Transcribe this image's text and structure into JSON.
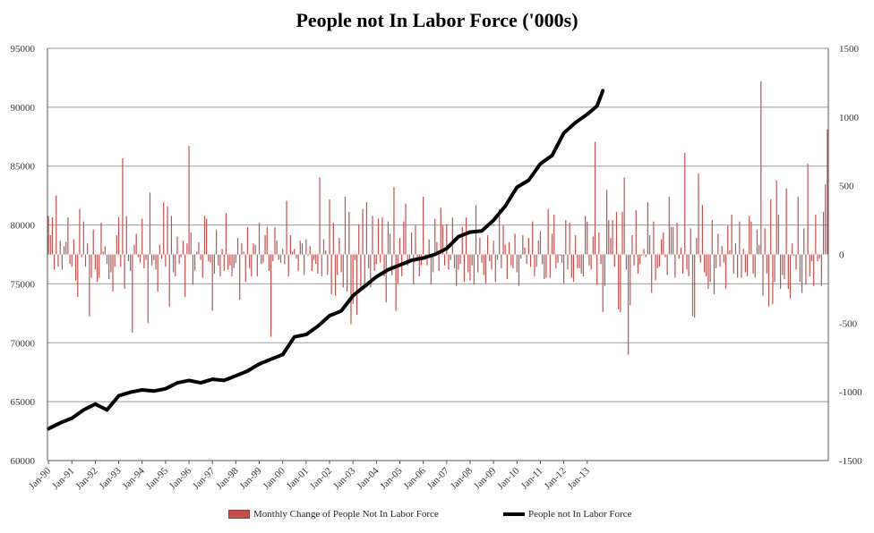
{
  "chart_data": {
    "type": "bar+line",
    "title": "People not In Labor Force ('000s)",
    "left_axis": {
      "ylim": [
        60000,
        95000
      ],
      "ticks": [
        "60000",
        "65000",
        "70000",
        "75000",
        "80000",
        "85000",
        "90000",
        "95000"
      ]
    },
    "right_axis": {
      "ylim": [
        -1500,
        1500
      ],
      "ticks": [
        "-1500",
        "-1000",
        "-500",
        "0",
        "500",
        "1000",
        "1500"
      ]
    },
    "x_start": "Jan-90",
    "x_ticks": [
      "Jan-90",
      "Jan-91",
      "Jan-92",
      "Jan-93",
      "Jan-94",
      "Jan-95",
      "Jan-96",
      "Jan-97",
      "Jan-98",
      "Jan-99",
      "Jan-00",
      "Jan-01",
      "Jan-02",
      "Jan-03",
      "Jan-04",
      "Jan-05",
      "Jan-06",
      "Jan-07",
      "Jan-08",
      "Jan-09",
      "Jan-10",
      "Jan-11",
      "Jan-12",
      "Jan-13"
    ],
    "grid": true,
    "legend_position": "bottom",
    "series": [
      {
        "name": "Monthly Change of People Not In Labor Force",
        "type": "bar",
        "axis": "right",
        "color": "#c0504d",
        "values": [
          280,
          140,
          270,
          -110,
          430,
          -90,
          100,
          -110,
          60,
          90,
          270,
          -70,
          -90,
          110,
          -190,
          -310,
          330,
          -20,
          240,
          -90,
          80,
          -450,
          -170,
          180,
          -110,
          -200,
          -170,
          230,
          20,
          60,
          -70,
          -180,
          -130,
          -270,
          -90,
          140,
          270,
          -90,
          700,
          -250,
          280,
          -50,
          -120,
          -570,
          70,
          150,
          -20,
          -60,
          260,
          -100,
          -40,
          -500,
          450,
          -80,
          -40,
          -110,
          -270,
          70,
          -30,
          380,
          -90,
          350,
          -380,
          280,
          -130,
          -160,
          130,
          -70,
          -20,
          100,
          -310,
          80,
          790,
          160,
          -220,
          -120,
          20,
          90,
          -40,
          -170,
          280,
          260,
          -50,
          -60,
          -410,
          -140,
          180,
          -80,
          -160,
          40,
          -120,
          300,
          -110,
          -80,
          -160,
          -100,
          -60,
          120,
          -330,
          80,
          20,
          -200,
          200,
          -100,
          -160,
          80,
          70,
          -160,
          230,
          -70,
          -60,
          140,
          200,
          -120,
          -600,
          -50,
          200,
          100,
          -40,
          -60,
          40,
          -70,
          390,
          -160,
          140,
          20,
          40,
          -30,
          -120,
          100,
          80,
          -150,
          110,
          -10,
          60,
          -120,
          -40,
          -70,
          -140,
          560,
          -160,
          110,
          30,
          -150,
          400,
          -290,
          230,
          -300,
          -150,
          120,
          -130,
          -240,
          420,
          -270,
          310,
          -510,
          -360,
          -40,
          -440,
          220,
          -270,
          330,
          -220,
          380,
          -100,
          -240,
          280,
          -120,
          -70,
          260,
          -60,
          270,
          -160,
          -350,
          240,
          150,
          -150,
          490,
          -410,
          -210,
          120,
          -160,
          240,
          370,
          -80,
          -60,
          160,
          -220,
          210,
          -30,
          -160,
          -80,
          420,
          -40,
          -80,
          110,
          -220,
          -130,
          260,
          90,
          -120,
          340,
          210,
          -80,
          220,
          -110,
          -40,
          270,
          -100,
          -230,
          -110,
          -70,
          200,
          -200,
          270,
          -130,
          -190,
          -80,
          -220,
          360,
          -130,
          120,
          -60,
          -150,
          -210,
          140,
          -50,
          -110,
          100,
          -200,
          -40,
          330,
          -100,
          210,
          70,
          -180,
          90,
          -80,
          -100,
          150,
          -130,
          -230,
          -30,
          140,
          50,
          -70,
          120,
          -90,
          240,
          -160,
          -90,
          100,
          170,
          -70,
          -180,
          -170,
          330,
          -170,
          150,
          290,
          -100,
          -60,
          -10,
          -60,
          -210,
          250,
          -110,
          230,
          -170,
          -200,
          140,
          -100,
          -100,
          -140,
          -160,
          280,
          240,
          -80,
          -110,
          130,
          820,
          -220,
          160,
          -70,
          -420,
          -230,
          470,
          250,
          120,
          250,
          -90,
          310,
          -400,
          -420,
          310,
          560,
          -110,
          -730,
          -370,
          140,
          -80,
          320,
          -140,
          -70,
          -10,
          40,
          -20,
          380,
          140,
          -280,
          240,
          -190,
          -100,
          -90,
          110,
          160,
          -20,
          -150,
          420,
          200,
          200,
          -170,
          230,
          -30,
          50,
          -140,
          740,
          -110,
          -160,
          190,
          -450,
          -460,
          120,
          590,
          -60,
          360,
          -130,
          -160,
          -250,
          -200,
          250,
          -290,
          -100,
          150,
          -90,
          60,
          -60,
          -250,
          210,
          30,
          290,
          -140,
          80,
          -170,
          240,
          -170,
          40,
          -130,
          -160,
          280,
          240,
          -140,
          -170,
          180,
          70,
          1260,
          -300,
          190,
          -140,
          -380,
          400,
          -360,
          -200,
          540,
          290,
          -250,
          -150,
          -180,
          480,
          -250,
          -320,
          80,
          -10,
          -110,
          420,
          -200,
          -280,
          190,
          -220,
          660,
          -160,
          -50,
          -230,
          290,
          -50,
          -30,
          -230,
          310,
          510,
          910
        ],
        "x_first": "Jan-90"
      },
      {
        "name": "People not In Labor Force",
        "type": "line",
        "axis": "left",
        "color": "#000000",
        "points": [
          [
            "Jan-90",
            62700
          ],
          [
            "Jul-90",
            63200
          ],
          [
            "Jan-91",
            63600
          ],
          [
            "Jul-91",
            64300
          ],
          [
            "Jan-92",
            64800
          ],
          [
            "Jul-92",
            64300
          ],
          [
            "Jan-93",
            65500
          ],
          [
            "Jul-93",
            65800
          ],
          [
            "Jan-94",
            66000
          ],
          [
            "Jul-94",
            65900
          ],
          [
            "Jan-95",
            66100
          ],
          [
            "Jul-95",
            66600
          ],
          [
            "Jan-96",
            66800
          ],
          [
            "Jul-96",
            66600
          ],
          [
            "Jan-97",
            66900
          ],
          [
            "Jul-97",
            66800
          ],
          [
            "Jan-98",
            67200
          ],
          [
            "Jul-98",
            67600
          ],
          [
            "Jan-99",
            68200
          ],
          [
            "Jul-99",
            68600
          ],
          [
            "Jan-00",
            69000
          ],
          [
            "Jul-00",
            70500
          ],
          [
            "Jan-01",
            70700
          ],
          [
            "Jul-01",
            71400
          ],
          [
            "Jan-02",
            72300
          ],
          [
            "Jul-02",
            72700
          ],
          [
            "Jan-03",
            74000
          ],
          [
            "Jul-03",
            74800
          ],
          [
            "Jan-04",
            75600
          ],
          [
            "Jul-04",
            76200
          ],
          [
            "Jan-05",
            76600
          ],
          [
            "Jul-05",
            77000
          ],
          [
            "Jan-06",
            77200
          ],
          [
            "Jul-06",
            77500
          ],
          [
            "Jan-07",
            78000
          ],
          [
            "Jul-07",
            79000
          ],
          [
            "Jan-08",
            79400
          ],
          [
            "Jul-08",
            79500
          ],
          [
            "Jan-09",
            80400
          ],
          [
            "Jul-09",
            81600
          ],
          [
            "Jan-10",
            83200
          ],
          [
            "Jul-10",
            83800
          ],
          [
            "Jan-11",
            85200
          ],
          [
            "Jul-11",
            85900
          ],
          [
            "Jan-12",
            87800
          ],
          [
            "Jul-12",
            88700
          ],
          [
            "Jan-13",
            89400
          ],
          [
            "Jun-13",
            90100
          ],
          [
            "Sep-13",
            91400
          ]
        ]
      }
    ]
  }
}
